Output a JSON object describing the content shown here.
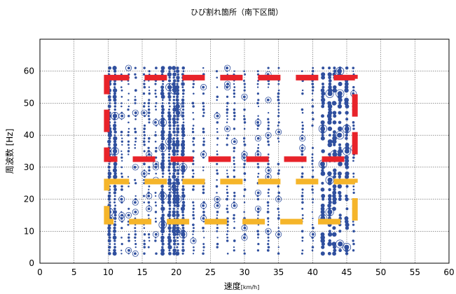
{
  "chart_data": {
    "type": "scatter",
    "title": "ひび割れ箇所（南下区間）",
    "xlabel_main": "速度",
    "xlabel_unit": "[km/h]",
    "ylabel": "周波数 [Hz]",
    "xlim": [
      0,
      60
    ],
    "ylim": [
      0,
      70
    ],
    "xticks": [
      0,
      5,
      10,
      15,
      20,
      25,
      30,
      35,
      40,
      45,
      50,
      55,
      60
    ],
    "yticks": [
      0,
      10,
      20,
      30,
      40,
      50,
      60
    ],
    "grid": true,
    "point_color": "#2f4f9e",
    "speed_columns": [
      10.2,
      11,
      12,
      13,
      14,
      15.3,
      16,
      17,
      18,
      19,
      19.7,
      20.2,
      21,
      22.5,
      24,
      26,
      27.5,
      28.5,
      30,
      32,
      33.5,
      35,
      38.5,
      40,
      41.5,
      42.5,
      43.2,
      44,
      45,
      46
    ],
    "frequency_range": [
      3,
      61
    ],
    "frequency_step": 1,
    "regions": [
      {
        "color": "#e8232a",
        "x": [
          9.8,
          46.2
        ],
        "y": [
          32.5,
          58
        ]
      },
      {
        "color": "#f5b52a",
        "x": [
          9.8,
          46.2
        ],
        "y": [
          13,
          25.5
        ]
      }
    ]
  }
}
